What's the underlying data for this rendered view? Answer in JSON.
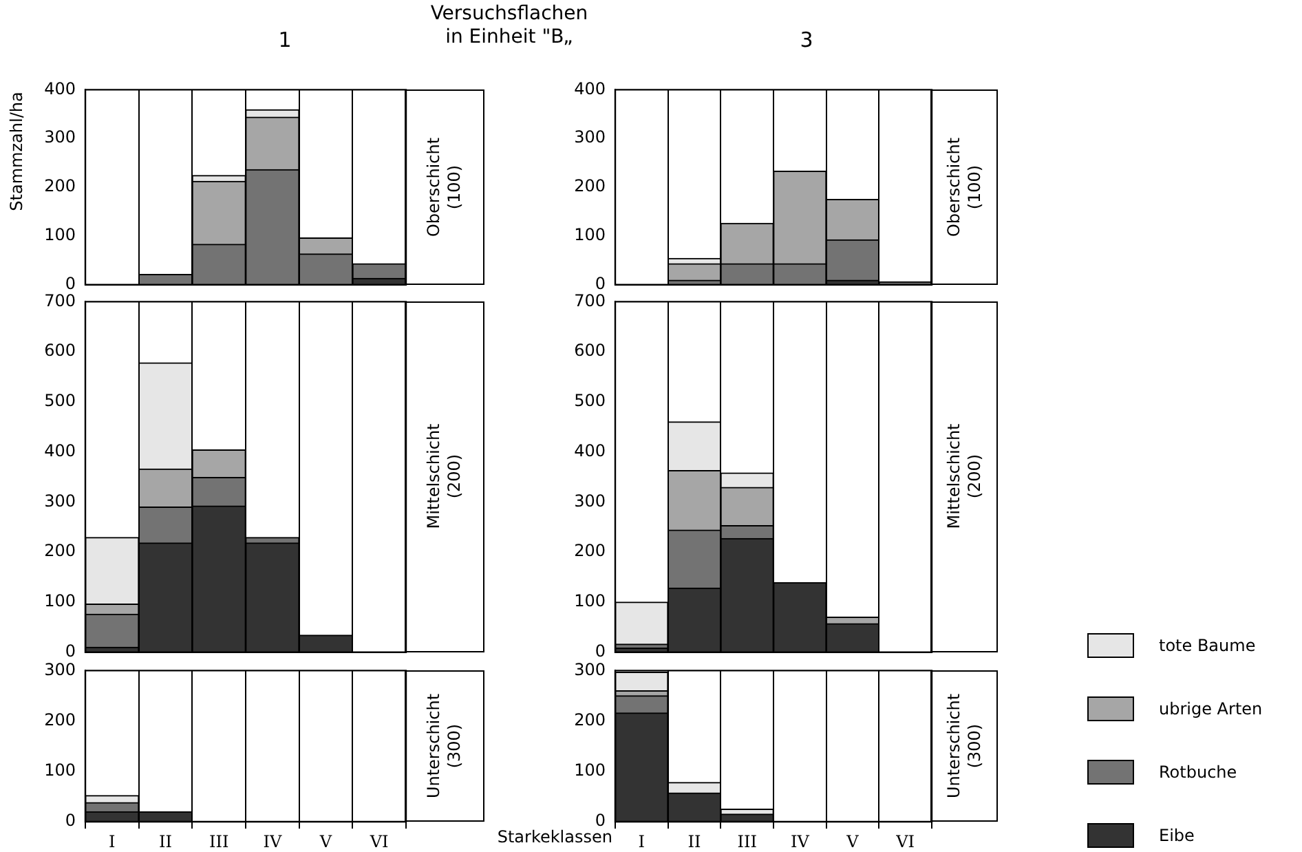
{
  "chart_data": [
    {
      "type": "bar",
      "title": "1",
      "ylabel": "Stammzahl/ha",
      "annotations": [
        "Oberschicht\n(100)",
        "Versuchsflachen\nin Einheit \"B„"
      ],
      "categories": [
        null,
        null,
        null,
        null,
        null,
        null
      ],
      "stacked": true,
      "grid": "x",
      "tick_labels": "y",
      "ylim": [
        0,
        400
      ],
      "yticks": [
        0,
        100,
        200,
        300,
        400
      ],
      "series": [
        {
          "color": "#333333",
          "values": [
            null,
            null,
            null,
            null,
            null,
            13
          ]
        },
        {
          "color": "#737373",
          "values": [
            null,
            21,
            83,
            236,
            63,
            30
          ]
        },
        {
          "color": "#a6a6a6",
          "values": [
            null,
            null,
            129,
            108,
            33,
            null
          ]
        },
        {
          "color": "#e6e6e6",
          "values": [
            null,
            null,
            12,
            15,
            null,
            null
          ]
        }
      ]
    },
    {
      "type": "bar",
      "title": "3",
      "annotations": [
        "Oberschicht\n(100)"
      ],
      "categories": [
        null,
        null,
        null,
        null,
        null,
        null
      ],
      "stacked": true,
      "grid": "x",
      "tick_labels": "y",
      "ylim": [
        0,
        400
      ],
      "yticks": [
        0,
        100,
        200,
        300,
        400
      ],
      "series": [
        {
          "color": "#333333",
          "values": [
            null,
            null,
            null,
            null,
            9,
            null
          ]
        },
        {
          "color": "#737373",
          "values": [
            null,
            9,
            43,
            43,
            83,
            6
          ]
        },
        {
          "color": "#a6a6a6",
          "values": [
            null,
            34,
            83,
            190,
            83,
            null
          ]
        },
        {
          "color": "#e6e6e6",
          "values": [
            null,
            11,
            null,
            null,
            null,
            null
          ]
        }
      ]
    },
    {
      "type": "bar",
      "annotations": [
        "Mittelschicht\n(200)"
      ],
      "categories": [
        null,
        null,
        null,
        null,
        null,
        null
      ],
      "stacked": true,
      "grid": "x",
      "tick_labels": "y",
      "ylim": [
        0,
        700
      ],
      "yticks": [
        0,
        100,
        200,
        300,
        400,
        500,
        600,
        700
      ],
      "series": [
        {
          "color": "#333333",
          "values": [
            10,
            218,
            292,
            218,
            34,
            null
          ]
        },
        {
          "color": "#737373",
          "values": [
            66,
            72,
            57,
            11,
            null,
            null
          ]
        },
        {
          "color": "#a6a6a6",
          "values": [
            20,
            76,
            55,
            null,
            null,
            null
          ]
        },
        {
          "color": "#e6e6e6",
          "values": [
            133,
            212,
            null,
            null,
            null,
            null
          ]
        }
      ]
    },
    {
      "type": "bar",
      "annotations": [
        "Mittelschicht\n(200)"
      ],
      "categories": [
        null,
        null,
        null,
        null,
        null,
        null
      ],
      "stacked": true,
      "grid": "x",
      "tick_labels": "y",
      "ylim": [
        0,
        700
      ],
      "yticks": [
        0,
        100,
        200,
        300,
        400,
        500,
        600,
        700
      ],
      "series": [
        {
          "color": "#333333",
          "values": [
            8,
            128,
            227,
            139,
            57,
            null
          ]
        },
        {
          "color": "#737373",
          "values": [
            8,
            116,
            26,
            null,
            null,
            null
          ]
        },
        {
          "color": "#a6a6a6",
          "values": [
            null,
            119,
            76,
            null,
            13,
            null
          ]
        },
        {
          "color": "#e6e6e6",
          "values": [
            84,
            97,
            29,
            null,
            null,
            null
          ]
        }
      ]
    },
    {
      "type": "bar",
      "annotations": [
        "Unterschicht\n(300)"
      ],
      "categories": [
        "I",
        "II",
        "III",
        "IV",
        "V",
        "VI"
      ],
      "stacked": true,
      "grid": "x",
      "ylim": [
        0,
        300
      ],
      "yticks": [
        0,
        100,
        200,
        300
      ],
      "series": [
        {
          "color": "#333333",
          "values": [
            20,
            20,
            null,
            null,
            null,
            null
          ]
        },
        {
          "color": "#737373",
          "values": [
            18,
            null,
            null,
            null,
            null,
            null
          ]
        },
        {
          "color": "#a6a6a6",
          "values": [
            null,
            null,
            null,
            null,
            null,
            null
          ]
        },
        {
          "color": "#e6e6e6",
          "values": [
            14,
            null,
            null,
            null,
            null,
            null
          ]
        }
      ]
    },
    {
      "type": "bar",
      "xlabel": "Starkeklassen",
      "annotations": [
        "Unterschicht\n(300)"
      ],
      "categories": [
        "I",
        "II",
        "III",
        "IV",
        "V",
        "VI"
      ],
      "stacked": true,
      "grid": "x",
      "legend": "right",
      "ylim": [
        0,
        300
      ],
      "yticks": [
        0,
        100,
        200,
        300
      ],
      "series": [
        {
          "name": "Eibe",
          "color": "#333333",
          "values": [
            216,
            57,
            15,
            null,
            null,
            null
          ]
        },
        {
          "name": "Rotbuche",
          "color": "#737373",
          "values": [
            34,
            null,
            null,
            null,
            null,
            null
          ]
        },
        {
          "name": "ubrige Arten",
          "color": "#a6a6a6",
          "values": [
            10,
            null,
            null,
            null,
            null,
            null
          ]
        },
        {
          "name": "tote Baume",
          "color": "#e6e6e6",
          "values": [
            37,
            21,
            10,
            null,
            null,
            null
          ]
        }
      ]
    }
  ]
}
